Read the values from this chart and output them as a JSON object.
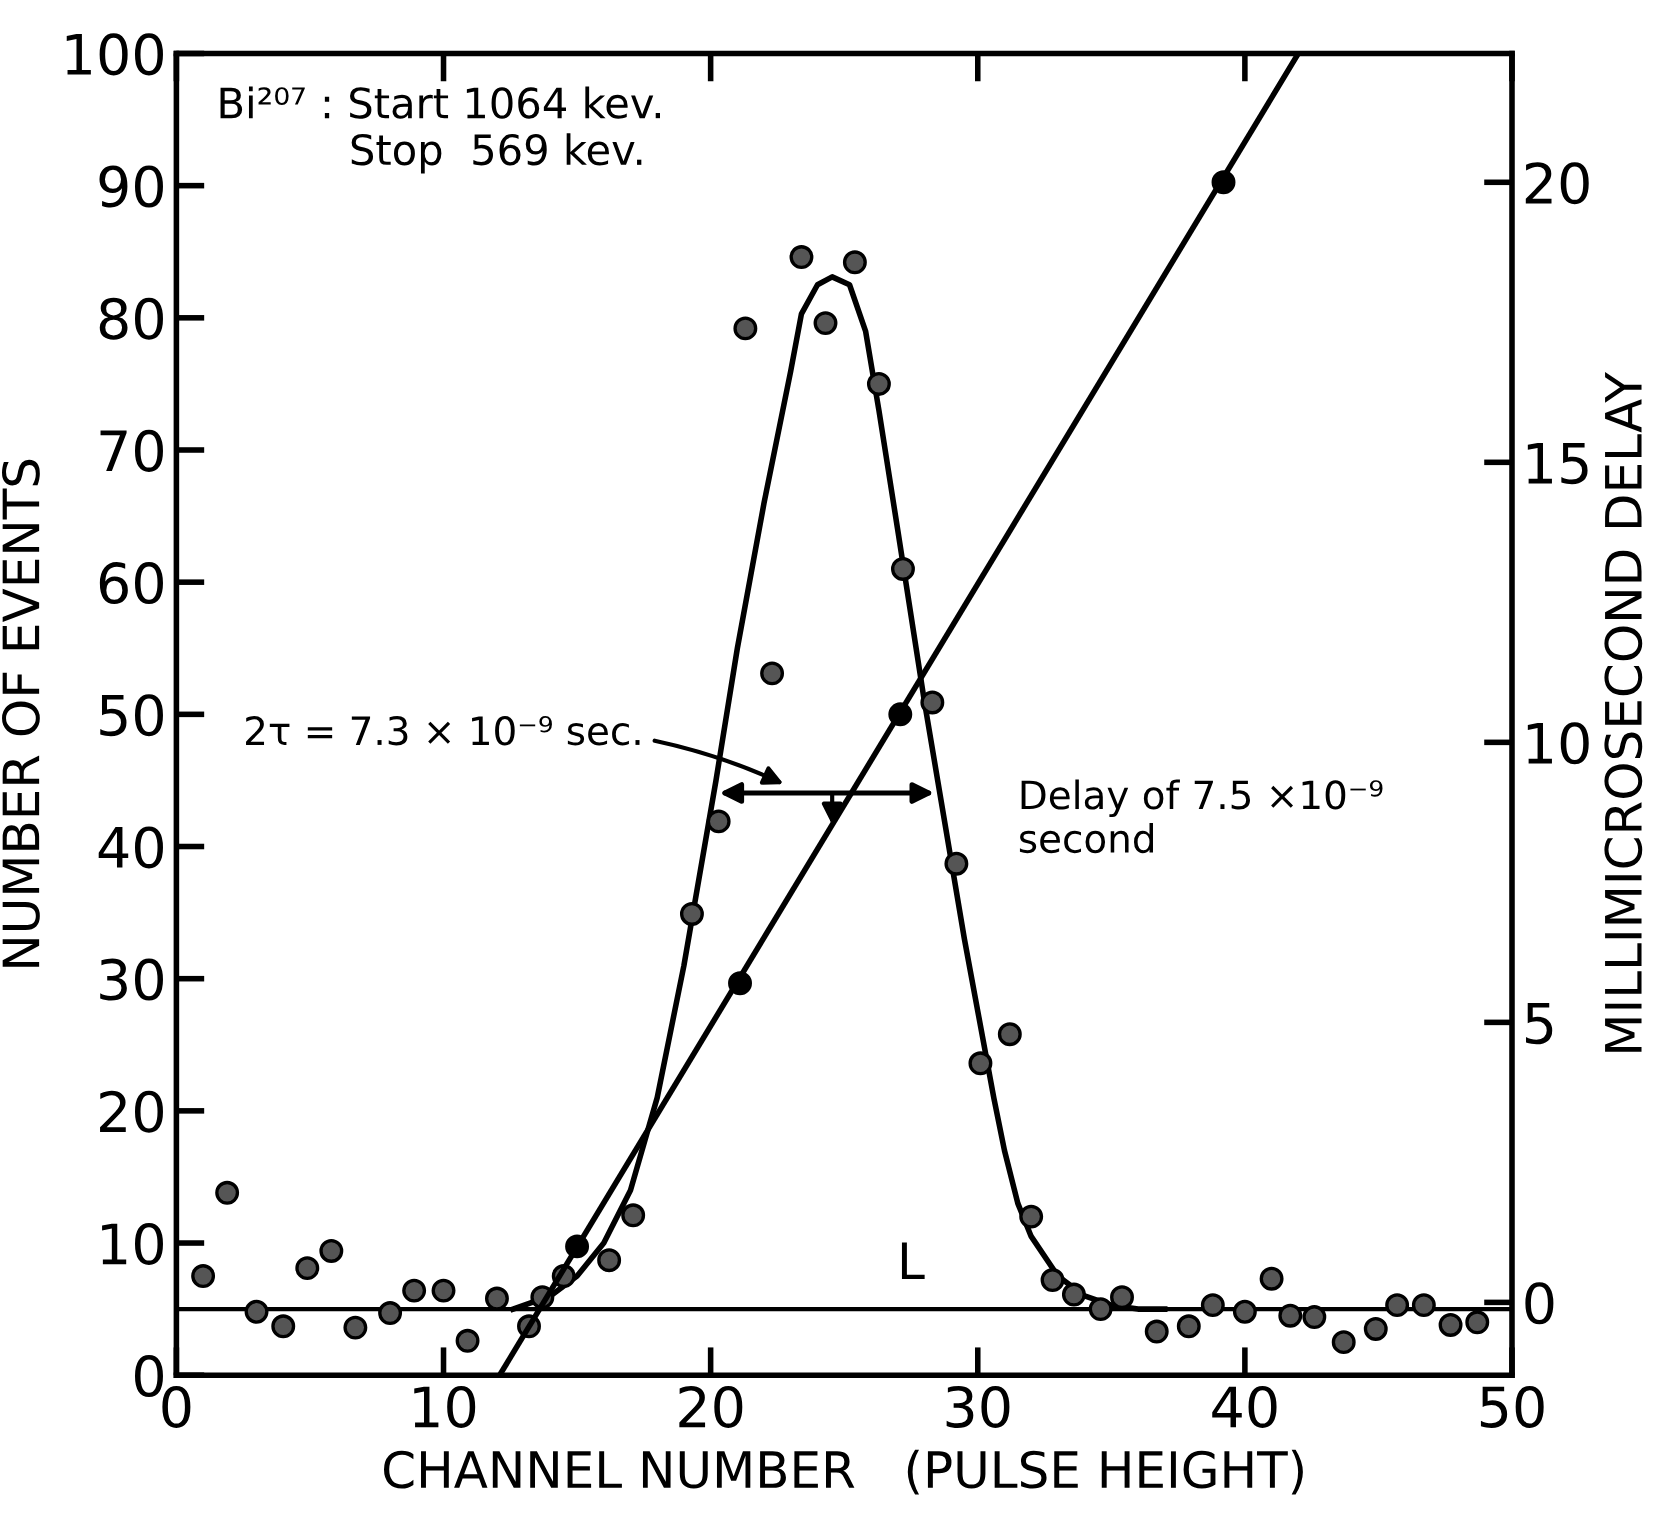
{
  "chart_data": {
    "type": "scatter",
    "xlabel": "CHANNEL NUMBER   (PULSE HEIGHT)",
    "ylabel": "NUMBER OF EVENTS",
    "y2label": "MILLIMICROSECOND DELAY",
    "xlim": [
      0,
      50
    ],
    "xticks": [
      0,
      10,
      20,
      30,
      40,
      50
    ],
    "ylim": [
      0,
      100
    ],
    "yticks": [
      0,
      10,
      20,
      30,
      40,
      50,
      60,
      70,
      80,
      90,
      100
    ],
    "y2lim": [
      -1.3,
      22.3
    ],
    "y2ticks": [
      0,
      5,
      10,
      15,
      20
    ],
    "grid": false,
    "series": [
      {
        "marker": "circle",
        "color": "#555555",
        "x": [
          1.0,
          1.9,
          3.0,
          4.0,
          4.9,
          5.8,
          6.7,
          8.0,
          8.9,
          10.0,
          10.9,
          12.0,
          13.2,
          13.7,
          14.5,
          16.2,
          17.1,
          19.3,
          20.3,
          21.3,
          22.3,
          23.4,
          24.3,
          25.4,
          26.3,
          27.2,
          28.3,
          29.2,
          30.1,
          31.2,
          32.0,
          32.8,
          33.6,
          34.6,
          35.4,
          36.7,
          37.9,
          38.8,
          40.0,
          41.0,
          41.7,
          42.6,
          43.7,
          44.9,
          45.7,
          46.7,
          47.7,
          48.7
        ],
        "values": [
          7.5,
          13.8,
          4.8,
          3.7,
          8.1,
          9.4,
          3.6,
          4.7,
          6.4,
          6.4,
          2.6,
          5.8,
          3.7,
          5.9,
          7.5,
          8.7,
          12.1,
          34.9,
          41.9,
          79.2,
          53.1,
          84.6,
          79.6,
          84.2,
          75.0,
          61.0,
          50.9,
          38.7,
          23.6,
          25.8,
          12.0,
          7.2,
          6.1,
          5.0,
          5.9,
          3.3,
          3.7,
          5.3,
          4.8,
          7.3,
          4.5,
          4.4,
          2.5,
          3.5,
          5.3,
          5.3,
          3.8,
          4.0
        ]
      },
      {
        "type": "line",
        "marker": "none",
        "line_style": "solid",
        "color": "#000000",
        "x": [
          12.6,
          14,
          15,
          16,
          17,
          18,
          19,
          20.2,
          21,
          22,
          23,
          23.4,
          24,
          24.55,
          25.2,
          25.8,
          26.3,
          27,
          28,
          28.5,
          29.5,
          30.6,
          31,
          31.5,
          32,
          33,
          34,
          35,
          36,
          37
        ],
        "values": [
          5,
          6,
          7.5,
          10,
          14,
          21,
          31,
          45,
          55,
          66,
          76,
          80.3,
          82.5,
          83.1,
          82.5,
          79,
          73,
          64,
          51,
          45,
          33,
          21,
          17,
          13,
          10.5,
          7.5,
          6,
          5.3,
          5,
          5
        ]
      },
      {
        "marker": "circle",
        "axis": "y2",
        "color": "#000000",
        "x": [
          15.0,
          21.1,
          27.1,
          39.2
        ],
        "values": [
          1.0,
          5.7,
          10.5,
          20.0
        ]
      },
      {
        "type": "line",
        "marker": "none",
        "line_style": "solid",
        "axis": "y2",
        "color": "#000000",
        "x": [
          12.1,
          42.0
        ],
        "values": [
          -1.3,
          22.3
        ]
      }
    ],
    "ref_lines": [
      {
        "axis": "y",
        "value": 5,
        "label": "L",
        "color": "#000000",
        "line_style": "solid"
      }
    ],
    "annotations": [
      "Bi²⁰⁷ : Start 1064 kev.\n          Stop  569 kev.",
      "2τ = 7.3 × 10⁻⁹ sec.",
      "Delay of 7.5 ×10⁻⁹\nsecond"
    ]
  }
}
